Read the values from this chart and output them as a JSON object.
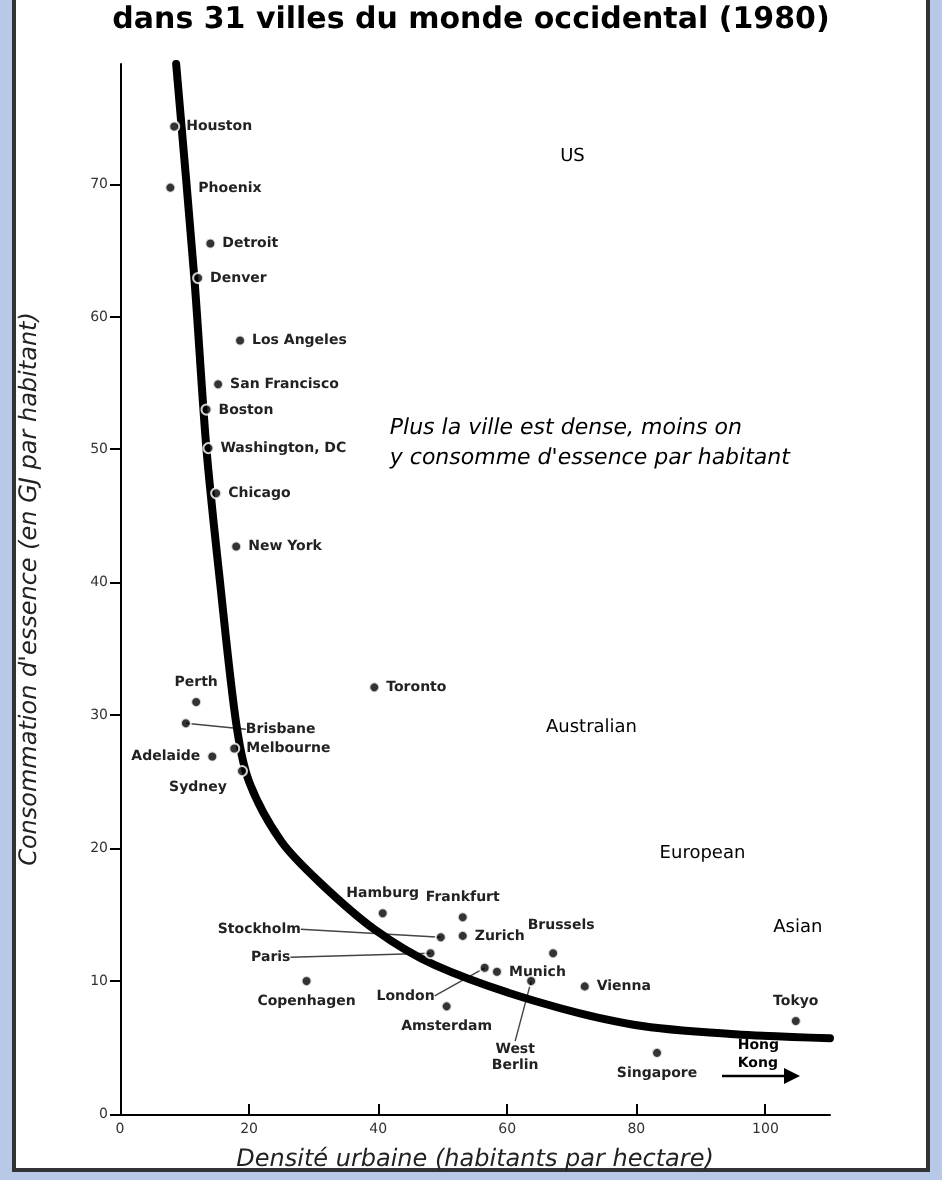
{
  "chart_data": {
    "type": "scatter",
    "title": "dans 31 villes du monde occidental (1980)",
    "xlabel": "Densité urbaine (habitants par hectare)",
    "ylabel": "Consommation d'essence (en GJ par habitant)",
    "xlim": [
      0,
      110
    ],
    "xticks": [
      0,
      20,
      40,
      60,
      80,
      100
    ],
    "ylim": [
      0,
      79
    ],
    "yticks": [
      0,
      10,
      20,
      30,
      40,
      50,
      60,
      70
    ],
    "grid": false,
    "marker": "circle",
    "series": [
      {
        "color": "#000000",
        "x": [
          8.4,
          7.8,
          14,
          12.1,
          18.6,
          15.2,
          13.4,
          13.7,
          14.9,
          18,
          11.8,
          10.2,
          39.4,
          17.7,
          14.3,
          18.9,
          40.7,
          53.1,
          49.7,
          53.1,
          48.1,
          67.1,
          56.5,
          58.4,
          63.7,
          28.9,
          72,
          50.6,
          83.2,
          104.7
        ],
        "values": [
          74.3,
          69.7,
          65.5,
          62.9,
          58.2,
          54.9,
          53,
          50.1,
          46.7,
          42.7,
          31,
          29.4,
          32.1,
          27.5,
          26.9,
          25.8,
          15.1,
          14.8,
          13.3,
          13.4,
          12.1,
          12.1,
          11,
          10.7,
          10,
          10,
          9.6,
          8.1,
          4.6,
          7
        ]
      },
      {
        "type": "line",
        "color": "#000000",
        "line_style": "solid",
        "marker": "none",
        "x": [
          8.7,
          11.5,
          13.4,
          15.5,
          18,
          20,
          25,
          31,
          39.4,
          48.8,
          64.3,
          79.8,
          95.3,
          110
        ],
        "values": [
          79,
          63,
          50,
          40,
          29.4,
          25,
          20.5,
          17.4,
          13.9,
          11.2,
          8.5,
          6.7,
          6,
          5.7
        ]
      }
    ],
    "annotations": [
      "Plus la ville est dense, moins on\ny consomme d'essence par habitant",
      "US",
      "Australian",
      "European",
      "Asian",
      "Hong\nKong",
      {
        "text": "Houston",
        "x": 8.4,
        "y": 74.3
      },
      {
        "text": "Phoenix",
        "x": 7.8,
        "y": 69.7
      },
      {
        "text": "Detroit",
        "x": 14,
        "y": 65.5
      },
      {
        "text": "Denver",
        "x": 12.1,
        "y": 62.9
      },
      {
        "text": "Los Angeles",
        "x": 18.6,
        "y": 58.2
      },
      {
        "text": "San Francisco",
        "x": 15.2,
        "y": 54.9
      },
      {
        "text": "Boston",
        "x": 13.4,
        "y": 53
      },
      {
        "text": "Washington, DC",
        "x": 13.7,
        "y": 50.1
      },
      {
        "text": "Chicago",
        "x": 14.9,
        "y": 46.7
      },
      {
        "text": "New York",
        "x": 18,
        "y": 42.7
      },
      {
        "text": "Perth",
        "x": 11.8,
        "y": 31
      },
      {
        "text": "Brisbane",
        "x": 10.2,
        "y": 29.4
      },
      {
        "text": "Toronto",
        "x": 39.4,
        "y": 32.1
      },
      {
        "text": "Melbourne",
        "x": 17.7,
        "y": 27.5
      },
      {
        "text": "Adelaide",
        "x": 14.3,
        "y": 26.9
      },
      {
        "text": "Sydney",
        "x": 18.9,
        "y": 25.8
      },
      {
        "text": "Hamburg",
        "x": 40.7,
        "y": 15.1
      },
      {
        "text": "Frankfurt",
        "x": 53.1,
        "y": 14.8
      },
      {
        "text": "Stockholm",
        "x": 49.7,
        "y": 13.3
      },
      {
        "text": "Zurich",
        "x": 53.1,
        "y": 13.4
      },
      {
        "text": "Paris",
        "x": 48.1,
        "y": 12.1
      },
      {
        "text": "Brussels",
        "x": 67.1,
        "y": 12.1
      },
      {
        "text": "London",
        "x": 56.5,
        "y": 11
      },
      {
        "text": "Munich",
        "x": 58.4,
        "y": 10.7
      },
      {
        "text": "West\nBerlin",
        "x": 63.7,
        "y": 10
      },
      {
        "text": "Copenhagen",
        "x": 28.9,
        "y": 10
      },
      {
        "text": "Vienna",
        "x": 72,
        "y": 9.6
      },
      {
        "text": "Amsterdam",
        "x": 50.6,
        "y": 8.1
      },
      {
        "text": "Singapore",
        "x": 83.2,
        "y": 4.6
      },
      {
        "text": "Tokyo",
        "x": 104.7,
        "y": 7
      }
    ]
  }
}
